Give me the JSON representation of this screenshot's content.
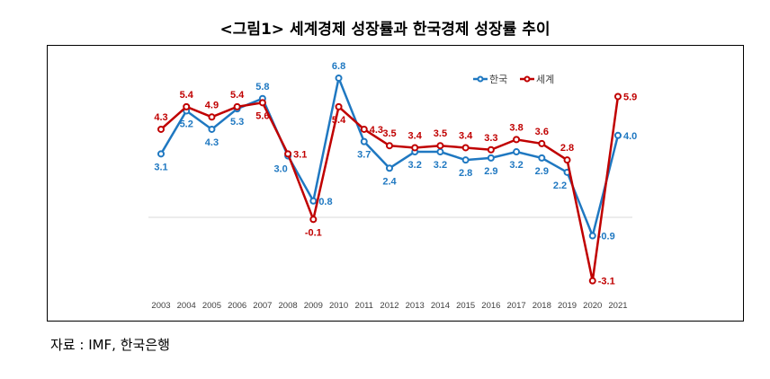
{
  "title": "<그림1> 세계경제 성장률과 한국경제 성장률 추이",
  "source": "자료 : IMF, 한국은행",
  "chart_data": {
    "type": "line",
    "title": "<그림1> 세계경제 성장률과 한국경제 성장률 추이",
    "xlabel": "",
    "ylabel": "",
    "x": [
      "2003",
      "2004",
      "2005",
      "2006",
      "2007",
      "2008",
      "2009",
      "2010",
      "2011",
      "2012",
      "2013",
      "2014",
      "2015",
      "2016",
      "2017",
      "2018",
      "2019",
      "2020",
      "2021"
    ],
    "ylim": [
      -3.5,
      7.5
    ],
    "grid": false,
    "legend": "top-right",
    "series": [
      {
        "name": "한국",
        "color": "#1f78c1",
        "values": [
          3.1,
          5.2,
          4.3,
          5.3,
          5.8,
          3.0,
          0.8,
          6.8,
          3.7,
          2.4,
          3.2,
          3.2,
          2.8,
          2.9,
          3.2,
          2.9,
          2.2,
          -0.9,
          4.0
        ]
      },
      {
        "name": "세계",
        "color": "#c00000",
        "values": [
          4.3,
          5.4,
          4.9,
          5.4,
          5.6,
          3.1,
          -0.1,
          5.4,
          4.3,
          3.5,
          3.4,
          3.5,
          3.4,
          3.3,
          3.8,
          3.6,
          2.8,
          -3.1,
          5.9
        ]
      }
    ]
  }
}
